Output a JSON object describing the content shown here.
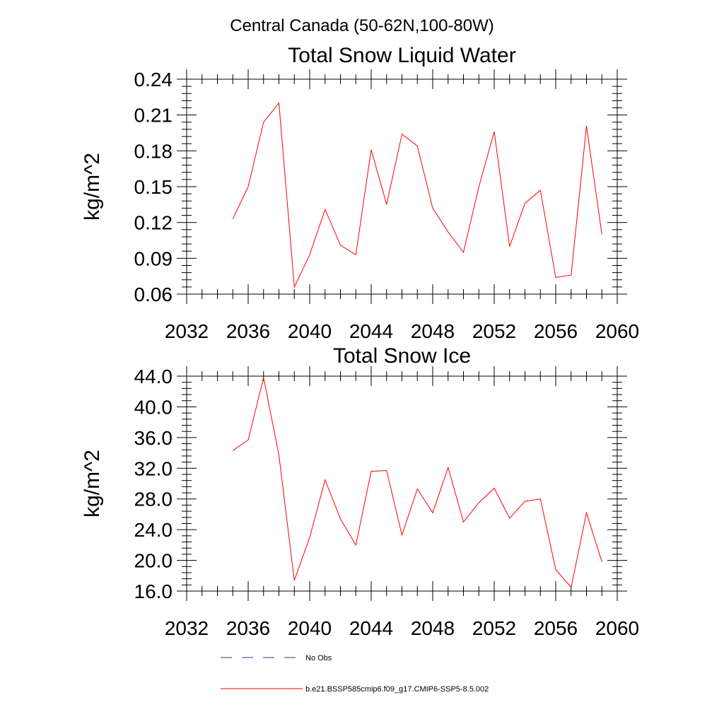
{
  "figure": {
    "suptitle": "Central Canada (50-62N,100-80W)"
  },
  "colors": {
    "model_line": "#ff0000",
    "obs_line": "#1f3f8f",
    "axes": "#000000"
  },
  "legend": {
    "obs_label": "No Obs",
    "model_label": "b.e21.BSSP585cmip6.f09_g17.CMIP6-SSP5-8.5.002"
  },
  "chart_data": [
    {
      "type": "line",
      "title": "Total Snow Liquid Water",
      "ylabel": "kg/m^2",
      "xlim": [
        2032,
        2060
      ],
      "ylim": [
        0.06,
        0.24
      ],
      "xticks": [
        "2032",
        "2036",
        "2040",
        "2044",
        "2048",
        "2052",
        "2056",
        "2060"
      ],
      "yticks": [
        "0.06",
        "0.09",
        "0.12",
        "0.15",
        "0.18",
        "0.21",
        "0.24"
      ],
      "x": [
        2035,
        2036,
        2037,
        2038,
        2039,
        2040,
        2041,
        2042,
        2043,
        2044,
        2045,
        2046,
        2047,
        2048,
        2049,
        2050,
        2051,
        2052,
        2053,
        2054,
        2055,
        2056,
        2057,
        2058,
        2059
      ],
      "series": [
        {
          "name": "b.e21.BSSP585cmip6.f09_g17.CMIP6-SSP5-8.5.002",
          "values": [
            0.123,
            0.15,
            0.204,
            0.22,
            0.066,
            0.093,
            0.131,
            0.101,
            0.093,
            0.181,
            0.135,
            0.194,
            0.184,
            0.132,
            0.112,
            0.095,
            0.15,
            0.196,
            0.1,
            0.136,
            0.147,
            0.074,
            0.076,
            0.201,
            0.11
          ]
        }
      ]
    },
    {
      "type": "line",
      "title": "Total Snow Ice",
      "ylabel": "kg/m^2",
      "xlim": [
        2032,
        2060
      ],
      "ylim": [
        16.0,
        44.0
      ],
      "xticks": [
        "2032",
        "2036",
        "2040",
        "2044",
        "2048",
        "2052",
        "2056",
        "2060"
      ],
      "yticks": [
        "16.0",
        "20.0",
        "24.0",
        "28.0",
        "32.0",
        "36.0",
        "40.0",
        "44.0"
      ],
      "x": [
        2035,
        2036,
        2037,
        2038,
        2039,
        2040,
        2041,
        2042,
        2043,
        2044,
        2045,
        2046,
        2047,
        2048,
        2049,
        2050,
        2051,
        2052,
        2053,
        2054,
        2055,
        2056,
        2057,
        2058,
        2059
      ],
      "series": [
        {
          "name": "b.e21.BSSP585cmip6.f09_g17.CMIP6-SSP5-8.5.002",
          "values": [
            34.3,
            35.7,
            43.8,
            33.7,
            17.4,
            23.0,
            30.5,
            25.4,
            22.0,
            31.6,
            31.7,
            23.3,
            29.3,
            26.2,
            32.1,
            25.0,
            27.5,
            29.4,
            25.5,
            27.7,
            28.0,
            18.8,
            16.5,
            26.2,
            19.8
          ]
        }
      ]
    }
  ]
}
